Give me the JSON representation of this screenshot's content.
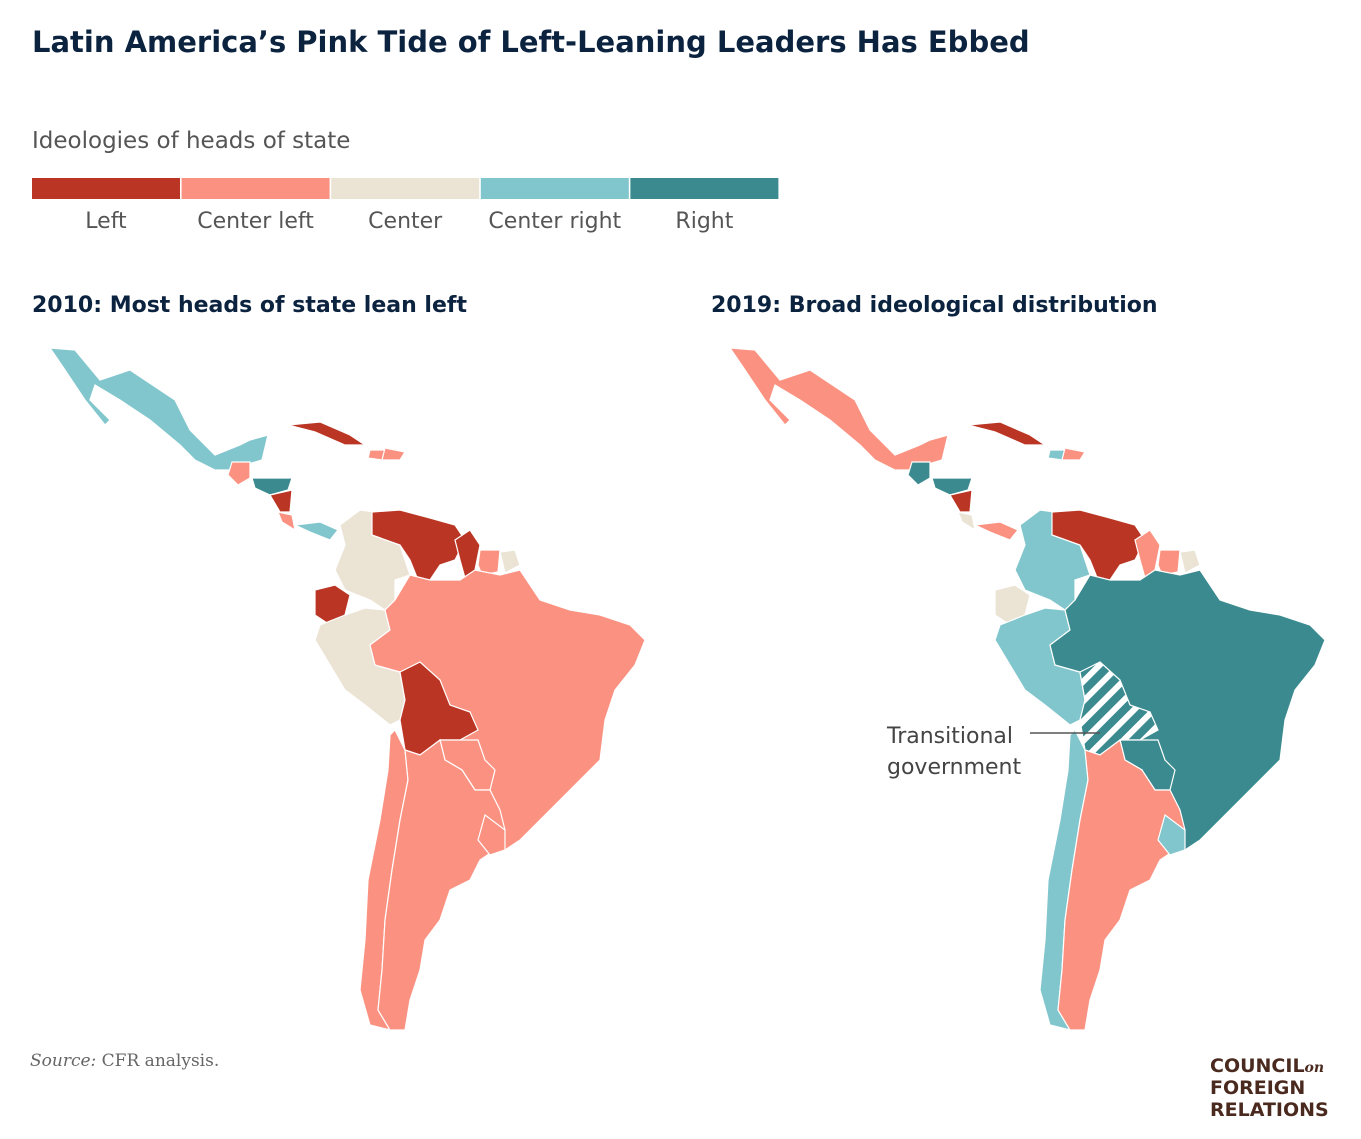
{
  "title": "Latin America’s Pink Tide of Left-Leaning Leaders Has Ebbed",
  "legend": {
    "title": "Ideologies of heads of state",
    "items": [
      {
        "label": "Left",
        "color": "#bb3524"
      },
      {
        "label": "Center left",
        "color": "#fb9281"
      },
      {
        "label": "Center",
        "color": "#ebe4d5"
      },
      {
        "label": "Center right",
        "color": "#82c6cd"
      },
      {
        "label": "Right",
        "color": "#3a8a8f"
      }
    ]
  },
  "maps": [
    {
      "title": "2010: Most heads of state lean left"
    },
    {
      "title": "2019: Broad ideological distribution",
      "annotation": "Transitional government"
    }
  ],
  "source": {
    "label": "Source:",
    "text": "CFR analysis."
  },
  "logo": {
    "line1": "COUNCIL",
    "small": "on",
    "line2": "FOREIGN",
    "line3": "RELATIONS"
  }
}
